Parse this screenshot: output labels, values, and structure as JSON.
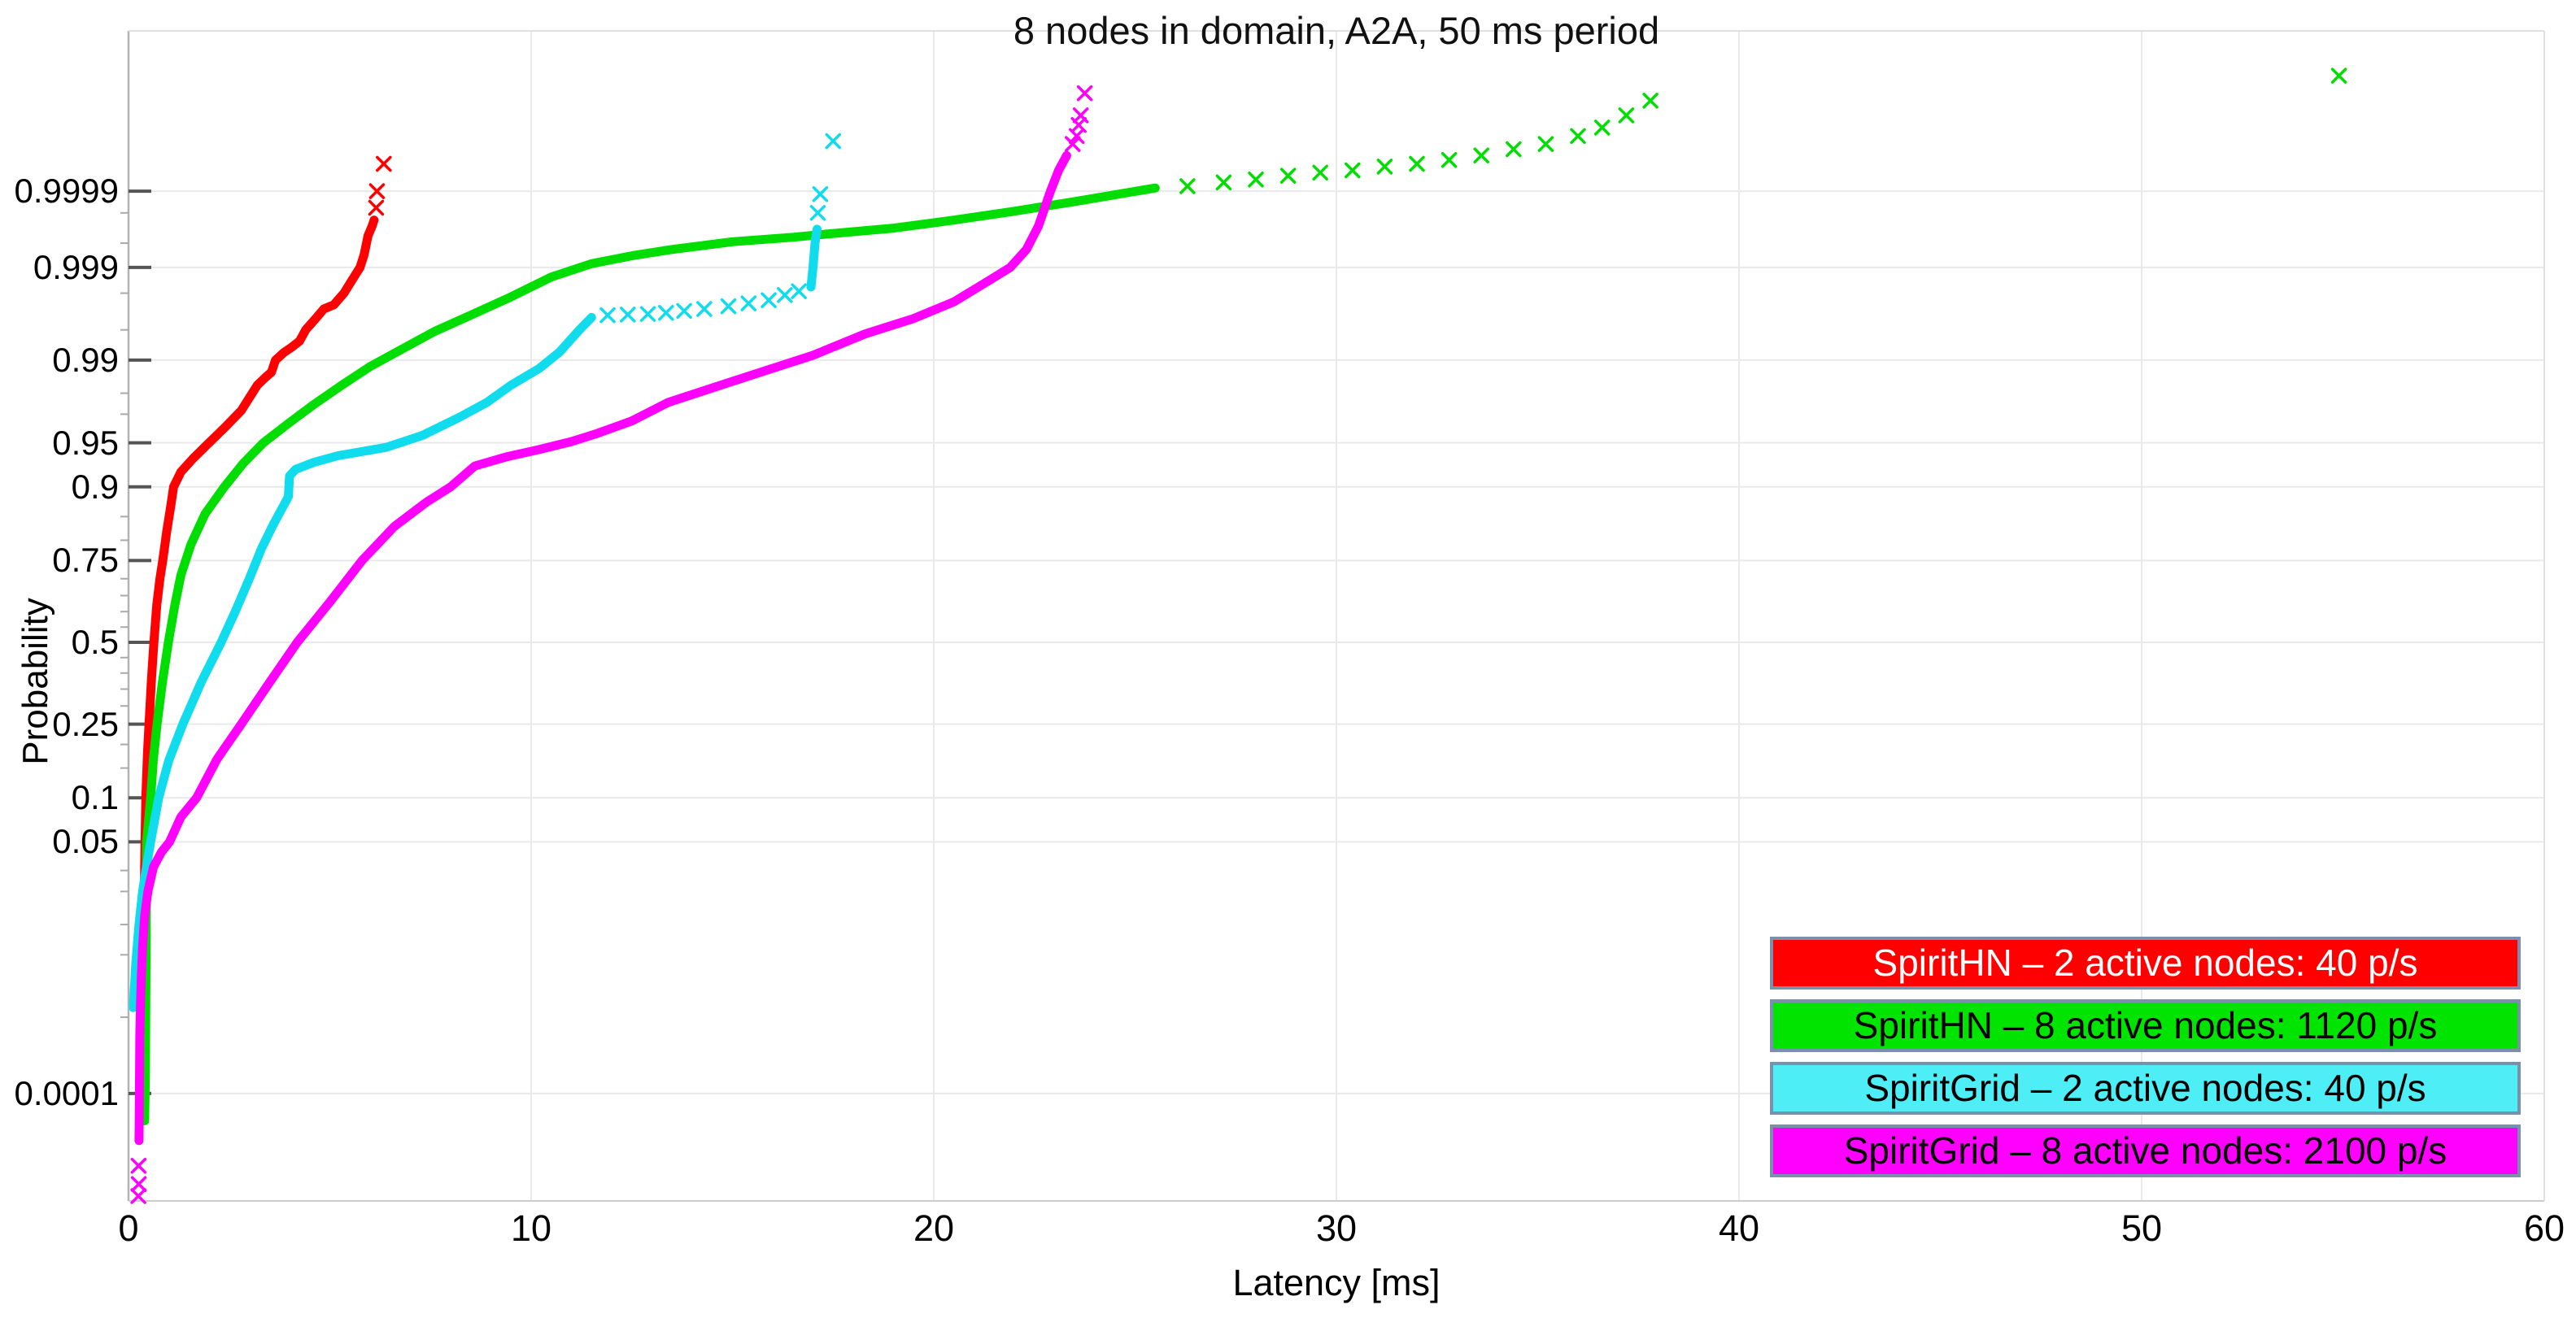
{
  "title": "8 nodes in domain, A2A, 50 ms period",
  "chart_data": {
    "type": "scatter",
    "marker": "x",
    "grid": true,
    "background": "#ffffff",
    "gridline_color": "#e9e9e9",
    "x_axis": {
      "label": "Latency [ms]",
      "min": 0,
      "max": 60,
      "ticks": [
        0,
        10,
        20,
        30,
        40,
        50,
        60
      ]
    },
    "y_axis": {
      "label": "Probability",
      "scale": "probit",
      "major_ticks": [
        0.0001,
        0.05,
        0.1,
        0.25,
        0.5,
        0.75,
        0.9,
        0.95,
        0.99,
        0.999,
        0.9999
      ],
      "major_tick_labels": [
        "0.0001",
        "0.05",
        "0.1",
        "0.25",
        "0.5",
        "0.75",
        "0.9",
        "0.95",
        "0.99",
        "0.999",
        "0.9999"
      ],
      "minor_ticks": [
        0.001,
        0.005,
        0.01,
        0.02,
        0.03,
        0.15,
        0.2,
        0.3,
        0.35,
        0.4,
        0.45,
        0.55,
        0.6,
        0.65,
        0.7,
        0.8,
        0.85,
        0.97,
        0.98,
        0.995,
        0.998,
        0.9995,
        0.9998
      ]
    },
    "legend_position": "bottom-right",
    "series": [
      {
        "id": "spirithn-2",
        "label": "SpiritHN – 2 active nodes: 40 p/s",
        "color": "#ff0000",
        "legend_fill": "#ff0000",
        "legend_text_color": "#ffffff",
        "dense": [
          [
            [
              0.35,
              0.001
            ],
            [
              0.38,
              0.01
            ],
            [
              0.4,
              0.03
            ],
            [
              0.41,
              0.05
            ],
            [
              0.43,
              0.1
            ],
            [
              0.47,
              0.18
            ],
            [
              0.51,
              0.25
            ],
            [
              0.57,
              0.38
            ],
            [
              0.63,
              0.5
            ],
            [
              0.7,
              0.62
            ],
            [
              0.78,
              0.7
            ],
            [
              0.85,
              0.75
            ],
            [
              0.95,
              0.82
            ],
            [
              1.05,
              0.87
            ],
            [
              1.12,
              0.9
            ],
            [
              1.3,
              0.92
            ],
            [
              1.6,
              0.935
            ],
            [
              2.0,
              0.95
            ],
            [
              2.4,
              0.962
            ],
            [
              2.8,
              0.972
            ],
            [
              3.2,
              0.983
            ],
            [
              3.4,
              0.9855
            ],
            [
              3.55,
              0.987
            ],
            [
              3.65,
              0.99
            ],
            [
              3.85,
              0.9915
            ],
            [
              4.05,
              0.9925
            ],
            [
              4.25,
              0.9935
            ],
            [
              4.4,
              0.995
            ],
            [
              4.65,
              0.9962
            ],
            [
              4.85,
              0.997
            ],
            [
              5.1,
              0.9973
            ],
            [
              5.35,
              0.998
            ],
            [
              5.6,
              0.9987
            ],
            [
              5.75,
              0.999
            ],
            [
              5.85,
              0.9993
            ],
            [
              5.95,
              0.9996
            ],
            [
              6.05,
              0.9997
            ],
            [
              6.1,
              0.99975
            ]
          ]
        ],
        "scatter": [
          [
            6.15,
            0.99983
          ],
          [
            6.17,
            0.9999
          ],
          [
            6.34,
            0.99996
          ]
        ]
      },
      {
        "id": "spirithn-8",
        "label": "SpiritHN – 8 active nodes: 1120 p/s",
        "color": "#00dd00",
        "legend_fill": "#00e400",
        "legend_text_color": "#000000",
        "dense": [
          [
            [
              0.4,
              4e-05
            ],
            [
              0.42,
              0.0002
            ],
            [
              0.43,
              0.002
            ],
            [
              0.44,
              0.01
            ],
            [
              0.45,
              0.05
            ],
            [
              0.55,
              0.1
            ],
            [
              0.62,
              0.17
            ],
            [
              0.71,
              0.25
            ],
            [
              0.84,
              0.37
            ],
            [
              0.99,
              0.5
            ],
            [
              1.15,
              0.62
            ],
            [
              1.3,
              0.71
            ],
            [
              1.55,
              0.79
            ],
            [
              1.9,
              0.855
            ],
            [
              2.38,
              0.9
            ],
            [
              2.85,
              0.93
            ],
            [
              3.35,
              0.95
            ],
            [
              4.0,
              0.965
            ],
            [
              4.6,
              0.975
            ],
            [
              5.3,
              0.983
            ],
            [
              6.0,
              0.9885
            ],
            [
              6.8,
              0.9922
            ],
            [
              7.6,
              0.9948
            ],
            [
              8.5,
              0.9965
            ],
            [
              9.5,
              0.9978
            ],
            [
              10.5,
              0.9987
            ],
            [
              11.5,
              0.9991
            ],
            [
              12.5,
              0.99928
            ],
            [
              13.5,
              0.9994
            ],
            [
              15.0,
              0.99952
            ],
            [
              16.5,
              0.99958
            ],
            [
              17.4,
              0.99962
            ],
            [
              19.0,
              0.99968
            ],
            [
              20.5,
              0.99975
            ],
            [
              22.0,
              0.99981
            ],
            [
              23.5,
              0.99986
            ],
            [
              25.5,
              0.99991
            ]
          ]
        ],
        "scatter": [
          [
            26.3,
            0.999915
          ],
          [
            27.2,
            0.999925
          ],
          [
            28.0,
            0.999932
          ],
          [
            28.8,
            0.99994
          ],
          [
            29.6,
            0.999946
          ],
          [
            30.4,
            0.99995
          ],
          [
            31.2,
            0.999956
          ],
          [
            32.0,
            0.99996
          ],
          [
            32.8,
            0.999965
          ],
          [
            33.6,
            0.99997
          ],
          [
            34.4,
            0.999976
          ],
          [
            35.2,
            0.99998
          ],
          [
            36.0,
            0.999985
          ],
          [
            36.6,
            0.999989
          ],
          [
            37.2,
            0.999993
          ],
          [
            37.8,
            0.999996
          ],
          [
            54.9,
            0.9999985
          ]
        ]
      },
      {
        "id": "spiritgrid-2",
        "label": "SpiritGrid – 2 active nodes: 40 p/s",
        "color": "#10dcee",
        "legend_fill": "#4deef6",
        "legend_text_color": "#000000",
        "dense": [
          [
            [
              0.12,
              0.0013
            ],
            [
              0.18,
              0.004
            ],
            [
              0.26,
              0.01
            ],
            [
              0.35,
              0.02
            ],
            [
              0.45,
              0.033
            ],
            [
              0.55,
              0.05
            ],
            [
              0.75,
              0.1
            ],
            [
              1.0,
              0.165
            ],
            [
              1.35,
              0.25
            ],
            [
              1.8,
              0.37
            ],
            [
              2.3,
              0.5
            ],
            [
              2.65,
              0.6
            ],
            [
              3.0,
              0.7
            ],
            [
              3.3,
              0.78
            ],
            [
              3.6,
              0.835
            ],
            [
              3.85,
              0.87
            ],
            [
              3.97,
              0.885
            ],
            [
              4.0,
              0.915
            ],
            [
              4.15,
              0.923
            ],
            [
              4.6,
              0.931
            ],
            [
              5.2,
              0.938
            ],
            [
              6.4,
              0.946
            ],
            [
              7.3,
              0.956
            ],
            [
              8.2,
              0.968
            ],
            [
              8.9,
              0.976
            ],
            [
              9.5,
              0.983
            ],
            [
              10.2,
              0.988
            ],
            [
              10.7,
              0.9916
            ],
            [
              11.2,
              0.995
            ],
            [
              11.5,
              0.9963
            ]
          ],
          [
            [
              16.95,
              0.9983
            ],
            [
              17.0,
              0.999
            ],
            [
              17.05,
              0.9995
            ],
            [
              17.1,
              0.99967
            ]
          ]
        ],
        "scatter": [
          [
            11.9,
            0.9965
          ],
          [
            12.4,
            0.99655
          ],
          [
            12.9,
            0.9966
          ],
          [
            13.35,
            0.9967
          ],
          [
            13.8,
            0.99685
          ],
          [
            14.3,
            0.997
          ],
          [
            14.9,
            0.9972
          ],
          [
            15.4,
            0.9974
          ],
          [
            15.9,
            0.9976
          ],
          [
            16.3,
            0.9979
          ],
          [
            16.65,
            0.9981
          ],
          [
            17.12,
            0.9998
          ],
          [
            17.18,
            0.99989
          ],
          [
            17.5,
            0.999982
          ]
        ]
      },
      {
        "id": "spiritgrid-8",
        "label": "SpiritGrid – 8 active nodes: 2100 p/s",
        "color": "#ff00ff",
        "legend_fill": "#ff00ff",
        "legend_text_color": "#000000",
        "dense": [
          [
            [
              0.26,
              2e-05
            ],
            [
              0.27,
              0.0001
            ],
            [
              0.28,
              0.0006
            ],
            [
              0.3,
              0.0015
            ],
            [
              0.32,
              0.003
            ],
            [
              0.35,
              0.006
            ],
            [
              0.4,
              0.012
            ],
            [
              0.48,
              0.02
            ],
            [
              0.62,
              0.032
            ],
            [
              0.82,
              0.042
            ],
            [
              1.02,
              0.05
            ],
            [
              1.3,
              0.075
            ],
            [
              1.69,
              0.1
            ],
            [
              2.2,
              0.168
            ],
            [
              2.8,
              0.25
            ],
            [
              3.5,
              0.37
            ],
            [
              4.19,
              0.5
            ],
            [
              5.0,
              0.63
            ],
            [
              5.8,
              0.75
            ],
            [
              6.6,
              0.83
            ],
            [
              7.4,
              0.876
            ],
            [
              8.0,
              0.9
            ],
            [
              8.6,
              0.927
            ],
            [
              9.4,
              0.937
            ],
            [
              10.2,
              0.944
            ],
            [
              11.0,
              0.951
            ],
            [
              11.6,
              0.957
            ],
            [
              12.5,
              0.966
            ],
            [
              13.4,
              0.976
            ],
            [
              14.5,
              0.982
            ],
            [
              15.7,
              0.987
            ],
            [
              17.0,
              0.991
            ],
            [
              18.3,
              0.9945
            ],
            [
              19.5,
              0.9962
            ],
            [
              20.5,
              0.9975
            ],
            [
              21.3,
              0.9985
            ],
            [
              21.9,
              0.999
            ],
            [
              22.3,
              0.9994
            ],
            [
              22.6,
              0.9997
            ],
            [
              22.9,
              0.9999
            ],
            [
              23.1,
              0.99995
            ],
            [
              23.3,
              0.99997
            ]
          ]
        ],
        "scatter": [
          [
            0.25,
            8e-06
          ],
          [
            0.255,
            4e-06
          ],
          [
            0.245,
            2.5e-06
          ],
          [
            23.45,
            0.99998
          ],
          [
            23.55,
            0.999985
          ],
          [
            23.6,
            0.99999
          ],
          [
            23.65,
            0.999993
          ],
          [
            23.75,
            0.999997
          ]
        ]
      }
    ]
  },
  "legend": {
    "border_color": "#7b90ad"
  }
}
